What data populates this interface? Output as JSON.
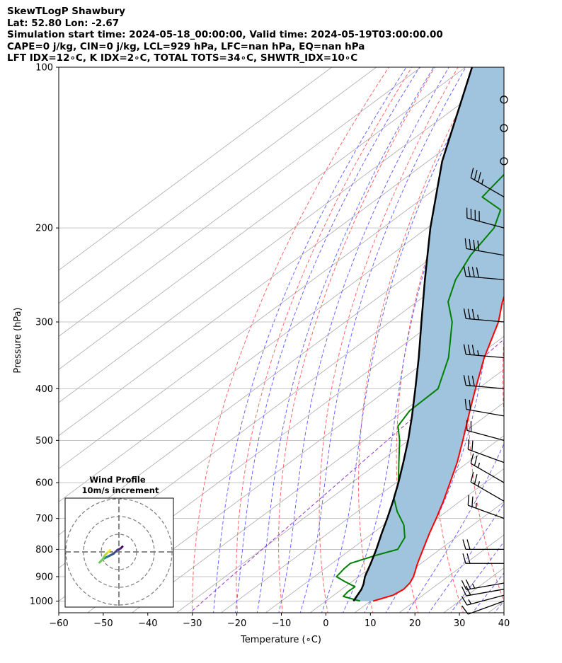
{
  "header": {
    "line1": "SkewTLogP Shawbury",
    "line2": "Lat: 52.80   Lon: -2.67",
    "line3": "Simulation start time: 2024-05-18_00:00:00, Valid time: 2024-05-19T03:00:00.00",
    "line4": "CAPE=0 j/kg, CIN=0 j/kg, LCL=929 hPa, LFC=nan hPa, EQ=nan hPa",
    "line5": "LFT IDX=12∘C, K IDX=2∘C, TOTAL TOTS=34∘C, SHWTR_IDX=10∘C"
  },
  "chart_data": {
    "type": "line",
    "title": "SkewTLogP Shawbury",
    "xlabel": "Temperature (∘C)",
    "ylabel": "Pressure (hPa)",
    "xlim": [
      -60,
      40
    ],
    "ylim": [
      1050,
      100
    ],
    "y_scale": "log",
    "x_ticks": [
      -60,
      -50,
      -40,
      -30,
      -20,
      -10,
      0,
      10,
      20,
      30,
      40
    ],
    "x_tick_labels": [
      "−60",
      "−50",
      "−40",
      "−30",
      "−20",
      "−10",
      "0",
      "10",
      "20",
      "30",
      "40"
    ],
    "y_ticks": [
      1000,
      900,
      800,
      700,
      600,
      500,
      400,
      300,
      200,
      100
    ],
    "grid": true,
    "series": [
      {
        "name": "",
        "role": "temperature",
        "color": "#ff0000",
        "pressure": [
          1000,
          975,
          950,
          925,
          900,
          850,
          800,
          750,
          700,
          650,
          600,
          550,
          500,
          450,
          400,
          350,
          300,
          275,
          250,
          225,
          200,
          175,
          150,
          130,
          115,
          100
        ],
        "values": [
          10.6,
          13.3,
          13.9,
          13.4,
          12.3,
          9.2,
          6.2,
          3.0,
          -0.2,
          -3.8,
          -7.9,
          -12.4,
          -17.8,
          -23.9,
          -30.6,
          -38.0,
          -45.6,
          -50.8,
          -55.8,
          -59.3,
          -58.9,
          -55.8,
          -55.3,
          -53.2,
          -51.5,
          -50.5
        ]
      },
      {
        "name": "",
        "role": "dewpoint",
        "color": "#008000",
        "pressure": [
          1000,
          980,
          960,
          940,
          920,
          900,
          870,
          850,
          820,
          800,
          760,
          720,
          680,
          640,
          600,
          550,
          500,
          470,
          440,
          400,
          350,
          300,
          275,
          250,
          225,
          200,
          185,
          175,
          150,
          100
        ],
        "values": [
          7.7,
          2.5,
          2.1,
          2.2,
          -1.5,
          -5.0,
          -5.7,
          -5.9,
          -2.5,
          0.5,
          -1.5,
          -5.5,
          -11.0,
          -16.0,
          -19.5,
          -25.5,
          -32.0,
          -36.7,
          -38.7,
          -39.0,
          -46.0,
          -56.0,
          -63.0,
          -68.0,
          -72.0,
          -75.0,
          -79.0,
          -87.0,
          -90.0,
          -95.0
        ]
      },
      {
        "name": "",
        "role": "parcel",
        "color": "#000000",
        "pressure": [
          1000,
          950,
          929,
          900,
          850,
          800,
          750,
          700,
          650,
          600,
          550,
          500,
          450,
          400,
          350,
          300,
          250,
          200,
          150,
          100
        ],
        "values": [
          6.2,
          4.4,
          3.3,
          1.4,
          -1.3,
          -4.3,
          -7.7,
          -11.2,
          -15.1,
          -19.5,
          -24.5,
          -30.1,
          -36.6,
          -44.1,
          -52.7,
          -62.9,
          -74.9,
          -89.3,
          -106.8,
          -128.5
        ]
      }
    ],
    "shaded_region": {
      "between": [
        "parcel",
        "temperature"
      ],
      "color": "#a0c4de"
    },
    "background_lines": {
      "isotherms": {
        "color": "#aaaaaa",
        "values_c": [
          -160,
          -150,
          -140,
          -130,
          -120,
          -110,
          -100,
          -90,
          -80,
          -70,
          -60,
          -50,
          -40,
          -30,
          -20,
          -10,
          0,
          10,
          20,
          30,
          40
        ]
      },
      "dry_adiabats": {
        "color": "#ff6666",
        "theta_c": [
          -30,
          -20,
          -10,
          0,
          10,
          20,
          30,
          40,
          50,
          60,
          70,
          80,
          90,
          100,
          110,
          120
        ]
      },
      "moist_adiabats": {
        "color": "#6666ff",
        "start_temp_c_at_1000": [
          -25,
          -20,
          -15,
          -10,
          -5,
          0,
          5,
          10,
          15,
          20,
          25,
          30,
          35,
          40
        ]
      },
      "mixing_ratio": {
        "color": "#9933cc",
        "values_gkg": [
          0.4
        ]
      }
    },
    "wind_barbs": {
      "pressure": [
        1000,
        975,
        950,
        925,
        850,
        800,
        700,
        650,
        600,
        550,
        500,
        450,
        400,
        350,
        300,
        250,
        225,
        200,
        175,
        150,
        130,
        115
      ],
      "speed_kt": [
        10,
        15,
        20,
        25,
        20,
        20,
        25,
        25,
        25,
        20,
        20,
        20,
        30,
        35,
        35,
        40,
        40,
        40,
        35,
        0,
        0,
        0
      ],
      "direction_deg": [
        250,
        255,
        260,
        260,
        270,
        270,
        290,
        300,
        300,
        290,
        285,
        280,
        275,
        275,
        275,
        275,
        280,
        285,
        300,
        0,
        0,
        0
      ],
      "calm_marker_pressures": [
        150,
        130,
        115
      ]
    },
    "hodograph": {
      "title_line1": "Wind Profile",
      "title_line2": "10m/s increment",
      "ring_step_ms": 10,
      "u_ms": [
        2,
        1,
        -1,
        -3,
        -5,
        -7,
        -9,
        -10,
        -11,
        -9,
        -8,
        -6,
        -5
      ],
      "v_ms": [
        3,
        2,
        1,
        -1,
        -2,
        -3,
        -4,
        -5,
        -6,
        -4,
        -2,
        0,
        1
      ],
      "colormap": "viridis"
    }
  }
}
